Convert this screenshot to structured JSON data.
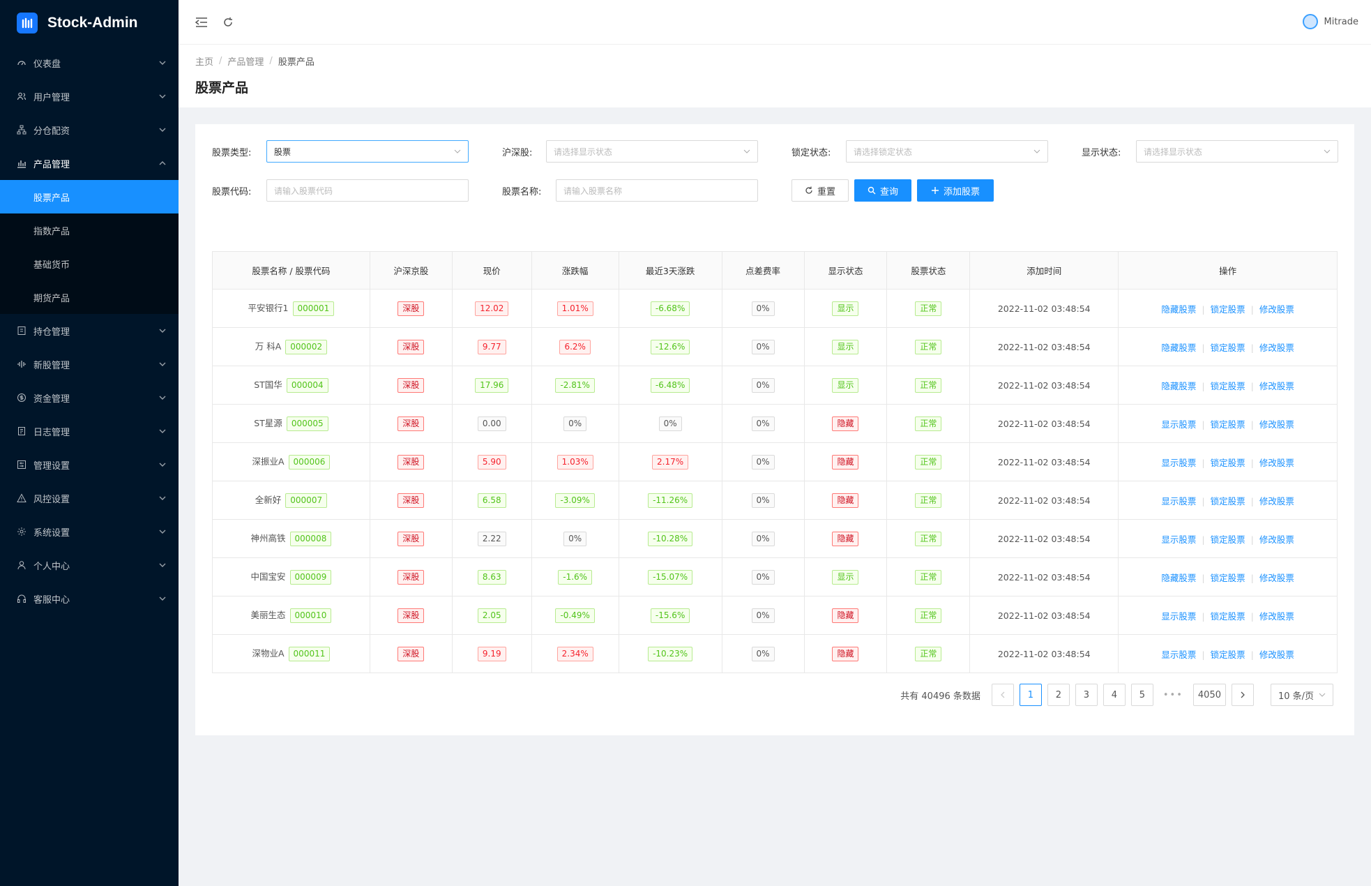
{
  "app": {
    "title": "Stock-Admin"
  },
  "sidebar": {
    "items": [
      {
        "label": "仪表盘",
        "icon": "dashboard-icon"
      },
      {
        "label": "用户管理",
        "icon": "users-icon"
      },
      {
        "label": "分仓配资",
        "icon": "branch-icon"
      },
      {
        "label": "产品管理",
        "icon": "chart-icon",
        "open": true,
        "children": [
          {
            "label": "股票产品",
            "active": true
          },
          {
            "label": "指数产品"
          },
          {
            "label": "基础货币"
          },
          {
            "label": "期货产品"
          }
        ]
      },
      {
        "label": "持仓管理",
        "icon": "position-icon"
      },
      {
        "label": "新股管理",
        "icon": "ipo-icon"
      },
      {
        "label": "资金管理",
        "icon": "dollar-icon"
      },
      {
        "label": "日志管理",
        "icon": "log-icon"
      },
      {
        "label": "管理设置",
        "icon": "admin-settings-icon"
      },
      {
        "label": "风控设置",
        "icon": "warning-icon"
      },
      {
        "label": "系统设置",
        "icon": "gear-icon"
      },
      {
        "label": "个人中心",
        "icon": "user-icon"
      },
      {
        "label": "客服中心",
        "icon": "headset-icon"
      }
    ]
  },
  "header": {
    "user_name": "Mitrade"
  },
  "breadcrumb": [
    "主页",
    "产品管理",
    "股票产品"
  ],
  "page_title": "股票产品",
  "filters": {
    "stock_type": {
      "label": "股票类型:",
      "value": "股票"
    },
    "exchange": {
      "label": "沪深股:",
      "placeholder": "请选择显示状态"
    },
    "lock_status": {
      "label": "锁定状态:",
      "placeholder": "请选择锁定状态"
    },
    "show_status": {
      "label": "显示状态:",
      "placeholder": "请选择显示状态"
    },
    "stock_code": {
      "label": "股票代码:",
      "placeholder": "请输入股票代码"
    },
    "stock_name": {
      "label": "股票名称:",
      "placeholder": "请输入股票名称"
    }
  },
  "buttons": {
    "reset": "重置",
    "query": "查询",
    "add": "添加股票"
  },
  "table": {
    "columns": [
      "股票名称 / 股票代码",
      "沪深京股",
      "现价",
      "涨跌幅",
      "最近3天涨跌",
      "点差费率",
      "显示状态",
      "股票状态",
      "添加时间",
      "操作"
    ],
    "rows": [
      {
        "name": "平安银行1",
        "code": "000001",
        "market": "深股",
        "price": "12.02",
        "change": "1.01%",
        "change3": "-6.68%",
        "spread": "0%",
        "show": "显示",
        "status": "正常",
        "time": "2022-11-02 03:48:54",
        "op1": "隐藏股票",
        "op2": "锁定股票",
        "op3": "修改股票"
      },
      {
        "name": "万 科A",
        "code": "000002",
        "market": "深股",
        "price": "9.77",
        "change": "6.2%",
        "change3": "-12.6%",
        "spread": "0%",
        "show": "显示",
        "status": "正常",
        "time": "2022-11-02 03:48:54",
        "op1": "隐藏股票",
        "op2": "锁定股票",
        "op3": "修改股票"
      },
      {
        "name": "ST国华",
        "code": "000004",
        "market": "深股",
        "price": "17.96",
        "change": "-2.81%",
        "change3": "-6.48%",
        "spread": "0%",
        "show": "显示",
        "status": "正常",
        "time": "2022-11-02 03:48:54",
        "op1": "隐藏股票",
        "op2": "锁定股票",
        "op3": "修改股票"
      },
      {
        "name": "ST星源",
        "code": "000005",
        "market": "深股",
        "price": "0.00",
        "change": "0%",
        "change3": "0%",
        "spread": "0%",
        "show": "隐藏",
        "status": "正常",
        "time": "2022-11-02 03:48:54",
        "op1": "显示股票",
        "op2": "锁定股票",
        "op3": "修改股票"
      },
      {
        "name": "深振业A",
        "code": "000006",
        "market": "深股",
        "price": "5.90",
        "change": "1.03%",
        "change3": "2.17%",
        "spread": "0%",
        "show": "隐藏",
        "status": "正常",
        "time": "2022-11-02 03:48:54",
        "op1": "显示股票",
        "op2": "锁定股票",
        "op3": "修改股票"
      },
      {
        "name": "全新好",
        "code": "000007",
        "market": "深股",
        "price": "6.58",
        "change": "-3.09%",
        "change3": "-11.26%",
        "spread": "0%",
        "show": "隐藏",
        "status": "正常",
        "time": "2022-11-02 03:48:54",
        "op1": "显示股票",
        "op2": "锁定股票",
        "op3": "修改股票"
      },
      {
        "name": "神州高铁",
        "code": "000008",
        "market": "深股",
        "price": "2.22",
        "change": "0%",
        "change3": "-10.28%",
        "spread": "0%",
        "show": "隐藏",
        "status": "正常",
        "time": "2022-11-02 03:48:54",
        "op1": "显示股票",
        "op2": "锁定股票",
        "op3": "修改股票"
      },
      {
        "name": "中国宝安",
        "code": "000009",
        "market": "深股",
        "price": "8.63",
        "change": "-1.6%",
        "change3": "-15.07%",
        "spread": "0%",
        "show": "显示",
        "status": "正常",
        "time": "2022-11-02 03:48:54",
        "op1": "隐藏股票",
        "op2": "锁定股票",
        "op3": "修改股票"
      },
      {
        "name": "美丽生态",
        "code": "000010",
        "market": "深股",
        "price": "2.05",
        "change": "-0.49%",
        "change3": "-15.6%",
        "spread": "0%",
        "show": "隐藏",
        "status": "正常",
        "time": "2022-11-02 03:48:54",
        "op1": "显示股票",
        "op2": "锁定股票",
        "op3": "修改股票"
      },
      {
        "name": "深物业A",
        "code": "000011",
        "market": "深股",
        "price": "9.19",
        "change": "2.34%",
        "change3": "-10.23%",
        "spread": "0%",
        "show": "隐藏",
        "status": "正常",
        "time": "2022-11-02 03:48:54",
        "op1": "显示股票",
        "op2": "锁定股票",
        "op3": "修改股票"
      }
    ]
  },
  "pagination": {
    "total": "共有 40496 条数据",
    "pages": [
      "1",
      "2",
      "3",
      "4",
      "5"
    ],
    "ellipsis": "•••",
    "last": "4050",
    "current": "1",
    "page_size": "10 条/页"
  },
  "colors": {
    "primary": "#1890ff",
    "sidebar": "#001529",
    "up": "#f5222d",
    "down": "#52c41a"
  }
}
